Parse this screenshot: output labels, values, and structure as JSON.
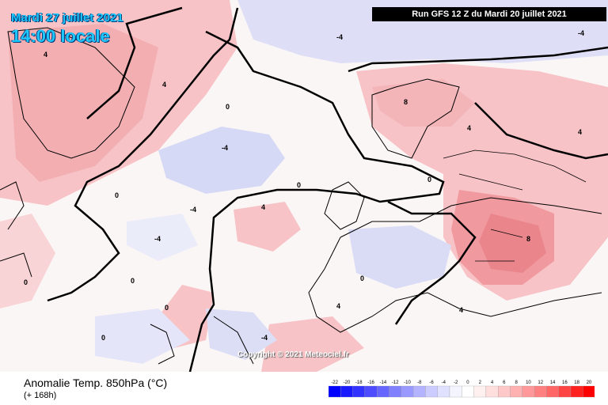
{
  "overlay": {
    "date": "Mardi 27 juillet 2021",
    "time": "14:00 locale",
    "run": "Run GFS 12 Z du Mardi 20 juillet 2021",
    "copyright": "Copyright © 2021 Meteociel.fr"
  },
  "footer": {
    "title": "Anomalie Temp. 850hPa (°C)",
    "lead": "(+ 168h)"
  },
  "legend": {
    "ticks": [
      "-22",
      "-20",
      "-18",
      "-16",
      "-14",
      "-12",
      "-10",
      "-8",
      "-6",
      "-4",
      "-2",
      "0",
      "2",
      "4",
      "6",
      "8",
      "10",
      "12",
      "14",
      "16",
      "18",
      "20"
    ],
    "colors": [
      "#0000ff",
      "#1a1aff",
      "#3333ff",
      "#4d4dff",
      "#6666ff",
      "#8080ff",
      "#9999ff",
      "#b3b3ff",
      "#ccccff",
      "#e0e0ff",
      "#f4f4ff",
      "#ffffff",
      "#fff0f0",
      "#ffdede",
      "#ffc8c8",
      "#ffb0b0",
      "#ff9898",
      "#ff8080",
      "#ff6666",
      "#ff4444",
      "#ff2020",
      "#ff0000"
    ]
  },
  "contour_labels": [
    "4",
    "-4",
    "0",
    "4",
    "-4",
    "0",
    "8",
    "4",
    "0",
    "-4",
    "0",
    "4",
    "-4",
    "0",
    "8",
    "4",
    "0",
    "-4",
    "0",
    "4",
    "0",
    "-4",
    "4",
    "0"
  ]
}
